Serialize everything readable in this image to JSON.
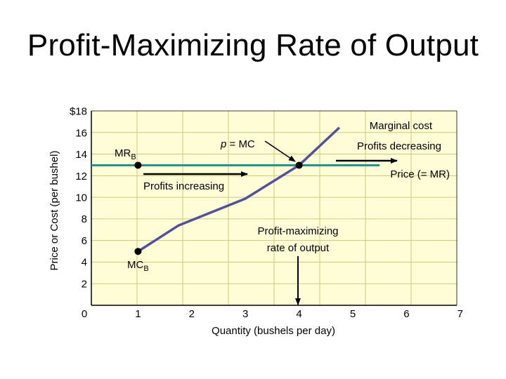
{
  "slide": {
    "title": "Profit-Maximizing Rate of Output"
  },
  "chart_data": {
    "type": "line",
    "xlabel": "Quantity (bushels per day)",
    "ylabel": "Price or Cost (per bushel)",
    "xlim": [
      0,
      7
    ],
    "ylim": [
      0,
      18
    ],
    "x_ticks": [
      "0",
      "1",
      "2",
      "3",
      "4",
      "5",
      "6",
      "7"
    ],
    "y_ticks": [
      "2",
      "4",
      "6",
      "8",
      "10",
      "12",
      "14",
      "16",
      "$18"
    ],
    "grid": true,
    "colors": {
      "plot_bg": "#fffdd6",
      "grid": "#c4cd7e",
      "marginal_cost": "#55509c",
      "price": "#24928f",
      "arrows": "#000000",
      "points": "#000000"
    },
    "series": [
      {
        "name": "Marginal cost",
        "x": [
          1,
          1.75,
          3,
          4,
          4.75
        ],
        "y": [
          5,
          7.4,
          9.9,
          13,
          16.5
        ]
      },
      {
        "name": "Price (= MR)",
        "x": [
          0,
          5.5
        ],
        "y": [
          13,
          13
        ]
      }
    ],
    "points": [
      {
        "label": "MRB",
        "x": 1,
        "y": 13
      },
      {
        "label": "MCB",
        "x": 1,
        "y": 5
      },
      {
        "label": "p = MC",
        "x": 4,
        "y": 13
      }
    ],
    "annotations": {
      "marginal_cost": "Marginal cost",
      "price_mr": "Price (= MR)",
      "p_eq_mc": "p = MC",
      "mr_b": "MRB",
      "mc_b": "MCB",
      "profits_increasing": "Profits increasing",
      "profits_decreasing": "Profits decreasing",
      "profit_max_line1": "Profit-maximizing",
      "profit_max_line2": "rate of output"
    }
  }
}
